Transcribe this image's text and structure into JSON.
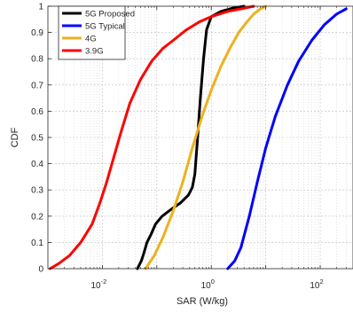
{
  "chart_data": {
    "type": "line",
    "xlabel": "SAR (W/kg)",
    "ylabel": "CDF",
    "xscale": "log",
    "xlim": [
      0.001,
      400
    ],
    "ylim": [
      0,
      1
    ],
    "x_ticks": [
      {
        "value": 0.01,
        "base": "10",
        "exp": "-2"
      },
      {
        "value": 1,
        "base": "10",
        "exp": "0"
      },
      {
        "value": 100,
        "base": "10",
        "exp": "2"
      }
    ],
    "y_ticks": [
      {
        "value": 0,
        "label": "0"
      },
      {
        "value": 0.1,
        "label": "0.1"
      },
      {
        "value": 0.2,
        "label": "0.2"
      },
      {
        "value": 0.3,
        "label": "0.3"
      },
      {
        "value": 0.4,
        "label": "0.4"
      },
      {
        "value": 0.5,
        "label": "0.5"
      },
      {
        "value": 0.6,
        "label": "0.6"
      },
      {
        "value": 0.7,
        "label": "0.7"
      },
      {
        "value": 0.8,
        "label": "0.8"
      },
      {
        "value": 0.9,
        "label": "0.9"
      },
      {
        "value": 1,
        "label": "1"
      }
    ],
    "grid": true,
    "legend_position": "top-left",
    "series": [
      {
        "name": "5G Proposed",
        "color": "#000000",
        "points": [
          [
            0.044,
            0
          ],
          [
            0.052,
            0.03
          ],
          [
            0.058,
            0.06
          ],
          [
            0.066,
            0.1
          ],
          [
            0.078,
            0.13
          ],
          [
            0.095,
            0.17
          ],
          [
            0.125,
            0.2
          ],
          [
            0.18,
            0.225
          ],
          [
            0.27,
            0.25
          ],
          [
            0.38,
            0.28
          ],
          [
            0.45,
            0.31
          ],
          [
            0.5,
            0.36
          ],
          [
            0.56,
            0.5
          ],
          [
            0.63,
            0.65
          ],
          [
            0.72,
            0.8
          ],
          [
            0.82,
            0.91
          ],
          [
            1.0,
            0.96
          ],
          [
            1.5,
            0.98
          ],
          [
            2.5,
            0.993
          ],
          [
            4.0,
            1.0
          ]
        ]
      },
      {
        "name": "5G Typical",
        "color": "#0000ff",
        "points": [
          [
            2.0,
            0
          ],
          [
            2.7,
            0.03
          ],
          [
            3.5,
            0.08
          ],
          [
            5.0,
            0.2
          ],
          [
            7.0,
            0.33
          ],
          [
            10.0,
            0.46
          ],
          [
            15.0,
            0.58
          ],
          [
            25.0,
            0.7
          ],
          [
            40.0,
            0.79
          ],
          [
            70.0,
            0.87
          ],
          [
            120.0,
            0.93
          ],
          [
            200.0,
            0.97
          ],
          [
            300.0,
            0.99
          ]
        ]
      },
      {
        "name": "4G",
        "color": "#edb120",
        "points": [
          [
            0.062,
            0
          ],
          [
            0.09,
            0.05
          ],
          [
            0.13,
            0.12
          ],
          [
            0.2,
            0.22
          ],
          [
            0.3,
            0.33
          ],
          [
            0.45,
            0.46
          ],
          [
            0.7,
            0.59
          ],
          [
            1.0,
            0.68
          ],
          [
            1.5,
            0.77
          ],
          [
            2.2,
            0.84
          ],
          [
            3.2,
            0.9
          ],
          [
            4.5,
            0.94
          ],
          [
            6.0,
            0.97
          ],
          [
            8.0,
            0.99
          ],
          [
            10.0,
            1.0
          ]
        ]
      },
      {
        "name": "3.9G",
        "color": "#ff0000",
        "points": [
          [
            0.0011,
            0
          ],
          [
            0.0016,
            0.02
          ],
          [
            0.0025,
            0.05
          ],
          [
            0.004,
            0.1
          ],
          [
            0.0065,
            0.17
          ],
          [
            0.009,
            0.25
          ],
          [
            0.012,
            0.33
          ],
          [
            0.016,
            0.42
          ],
          [
            0.022,
            0.52
          ],
          [
            0.032,
            0.63
          ],
          [
            0.05,
            0.72
          ],
          [
            0.08,
            0.79
          ],
          [
            0.13,
            0.84
          ],
          [
            0.2,
            0.87
          ],
          [
            0.35,
            0.91
          ],
          [
            0.6,
            0.94
          ],
          [
            1.0,
            0.96
          ],
          [
            2.0,
            0.98
          ],
          [
            3.5,
            0.99
          ],
          [
            6.0,
            1.0
          ]
        ]
      }
    ]
  }
}
